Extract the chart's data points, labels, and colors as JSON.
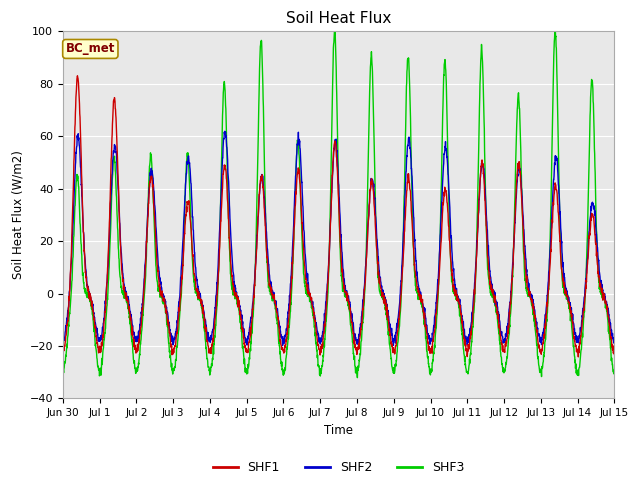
{
  "title": "Soil Heat Flux",
  "ylabel": "Soil Heat Flux (W/m2)",
  "xlabel": "Time",
  "ylim": [
    -40,
    100
  ],
  "background_color": "#ffffff",
  "plot_bg_color": "#e8e8e8",
  "shf1_color": "#cc0000",
  "shf2_color": "#0000cc",
  "shf3_color": "#00cc00",
  "legend_labels": [
    "SHF1",
    "SHF2",
    "SHF3"
  ],
  "annotation_text": "BC_met",
  "annotation_color": "#800000",
  "annotation_bg": "#ffffcc",
  "annotation_border": "#aa8800",
  "grid_color": "#ffffff",
  "tick_labels": [
    "Jun 30",
    "Jul 1",
    "Jul 2",
    "Jul 3",
    "Jul 4",
    "Jul 5",
    "Jul 6",
    "Jul 7",
    "Jul 8",
    "Jul 9",
    "Jul 10",
    "Jul 11",
    "Jul 12",
    "Jul 13",
    "Jul 14",
    "Jul 15"
  ],
  "yticks": [
    -40,
    -20,
    0,
    20,
    40,
    60,
    80,
    100
  ],
  "line_width": 1.0,
  "amp_shf1": [
    83,
    74,
    45,
    35,
    49,
    45,
    47,
    58,
    43,
    44,
    40,
    50,
    50,
    41,
    30
  ],
  "amp_shf2": [
    60,
    57,
    47,
    52,
    62,
    45,
    59,
    58,
    44,
    59,
    56,
    50,
    48,
    52,
    35
  ],
  "amp_shf3": [
    45,
    52,
    53,
    53,
    80,
    97,
    58,
    100,
    91,
    91,
    89,
    93,
    76,
    100,
    82
  ],
  "trough_shf1": -22,
  "trough_shf2": -18,
  "trough_shf3": -30,
  "n_points_per_day": 144
}
